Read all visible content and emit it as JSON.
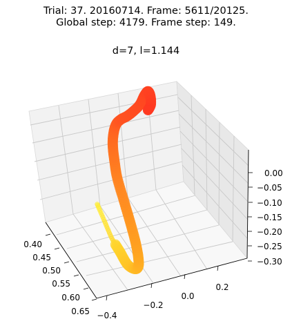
{
  "figure": {
    "title_line1": "Trial: 37. 20160714. Frame: 5611/20125.",
    "title_line2": "Global step: 4179. Frame step: 149.",
    "axes_title": "d=7, l=1.144"
  },
  "chart_data": {
    "type": "line",
    "projection": "3d",
    "title": "d=7, l=1.144",
    "xlabel": "",
    "ylabel": "",
    "zlabel": "",
    "grid": true,
    "xlim": [
      0.38,
      0.66
    ],
    "ylim": [
      -0.45,
      0.38
    ],
    "zlim": [
      -0.31,
      0.04
    ],
    "x_ticks": [
      "0.40",
      "0.45",
      "0.50",
      "0.55",
      "0.60",
      "0.65"
    ],
    "y_ticks": [
      "−0.4",
      "−0.2",
      "0.0",
      "0.2"
    ],
    "z_ticks": [
      "0.00",
      "−0.05",
      "−0.10",
      "−0.15",
      "−0.20",
      "−0.25",
      "−0.30"
    ],
    "colormap": [
      "#ffee33",
      "#ffa020",
      "#ff5522",
      "#ff3a22"
    ],
    "series": [
      {
        "marker": "o",
        "points": [
          [
            0.405,
            -0.19,
            -0.27
          ],
          [
            0.445,
            -0.19,
            -0.29
          ],
          [
            0.485,
            -0.19,
            -0.31
          ],
          [
            0.525,
            -0.185,
            -0.32
          ],
          [
            0.56,
            -0.18,
            -0.33
          ],
          [
            0.59,
            -0.17,
            -0.32
          ],
          [
            0.605,
            -0.165,
            -0.3
          ],
          [
            0.605,
            -0.165,
            -0.27
          ],
          [
            0.595,
            -0.17,
            -0.23
          ],
          [
            0.575,
            -0.18,
            -0.18
          ],
          [
            0.55,
            -0.19,
            -0.13
          ],
          [
            0.525,
            -0.2,
            -0.08
          ],
          [
            0.51,
            -0.2,
            -0.04
          ],
          [
            0.495,
            -0.195,
            0.0
          ],
          [
            0.485,
            -0.18,
            0.03
          ],
          [
            0.47,
            -0.15,
            0.04
          ],
          [
            0.455,
            -0.11,
            0.035
          ],
          [
            0.44,
            -0.06,
            0.025
          ],
          [
            0.425,
            -0.01,
            0.02
          ],
          [
            0.41,
            0.04,
            0.02
          ],
          [
            0.395,
            0.08,
            0.03
          ],
          [
            0.385,
            0.11,
            0.03
          ],
          [
            0.383,
            0.125,
            0.01
          ],
          [
            0.39,
            0.12,
            -0.01
          ],
          [
            0.405,
            0.09,
            -0.01
          ]
        ]
      }
    ]
  }
}
